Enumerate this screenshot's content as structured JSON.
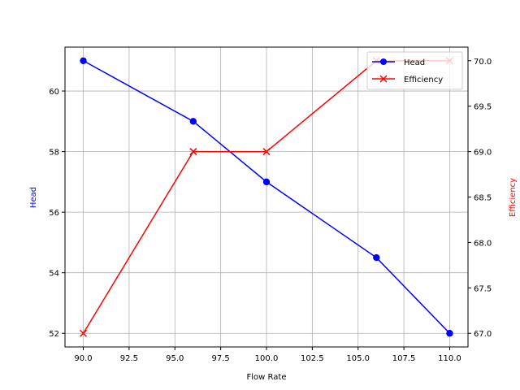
{
  "chart_data": {
    "type": "line",
    "title": "",
    "xlabel": "Flow Rate",
    "ylabel": "Head",
    "ylabel_right": "Efficiency",
    "x": [
      90,
      96,
      100,
      106,
      110
    ],
    "series": [
      {
        "name": "Head",
        "axis": "left",
        "color": "#0000ff",
        "marker": "circle",
        "values": [
          61,
          59,
          57,
          54.5,
          52
        ]
      },
      {
        "name": "Efficiency",
        "axis": "right",
        "color": "#ff0000",
        "marker": "x",
        "values": [
          67,
          69,
          69,
          70,
          70
        ]
      }
    ],
    "xlim": [
      89.0,
      111.0
    ],
    "ylim": [
      51.55,
      61.45
    ],
    "ylim_right": [
      66.85,
      70.15
    ],
    "x_ticks": [
      "90.0",
      "92.5",
      "95.0",
      "97.5",
      "100.0",
      "102.5",
      "105.0",
      "107.5",
      "110.0"
    ],
    "y_ticks": [
      "52",
      "54",
      "56",
      "58",
      "60"
    ],
    "y_ticks_right": [
      "67.0",
      "67.5",
      "68.0",
      "68.5",
      "69.0",
      "69.5",
      "70.0"
    ],
    "grid": true,
    "legend_position": "upper right"
  }
}
